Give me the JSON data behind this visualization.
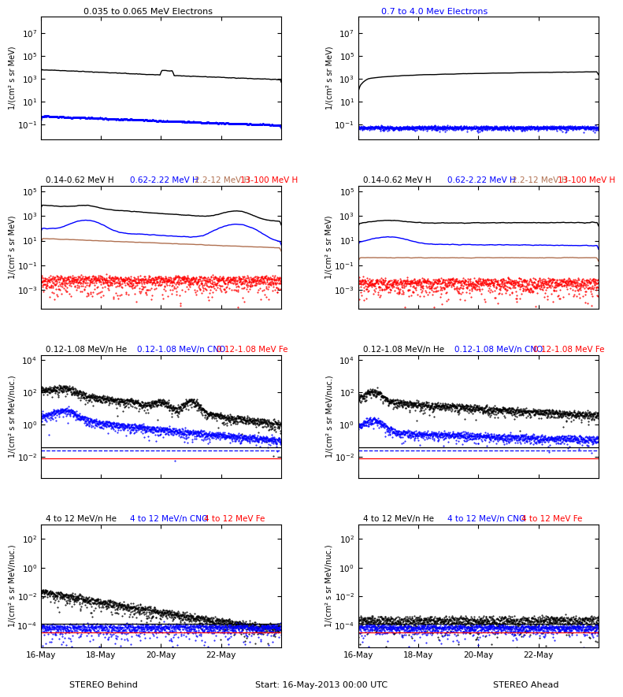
{
  "panels": {
    "row0": {
      "left_title": "0.035 to 0.065 MeV Electrons",
      "right_title": "0.7 to 4.0 Mev Electrons",
      "right_title_color": "blue",
      "ylim": [
        0.005,
        300000000.0
      ],
      "ylabel": "1/(cm² s sr MeV)"
    },
    "row1": {
      "labels": [
        "0.14-0.62 MeV H",
        "0.62-2.22 MeV H",
        "2.2-12 MeV H",
        "13-100 MeV H"
      ],
      "colors": [
        "black",
        "blue",
        "#b07050",
        "red"
      ],
      "ylim": [
        3e-05,
        300000.0
      ],
      "ylabel": "1/(cm² s sr MeV)"
    },
    "row2": {
      "labels": [
        "0.12-1.08 MeV/n He",
        "0.12-1.08 MeV/n CNO",
        "0.12-1.08 MeV Fe"
      ],
      "colors": [
        "black",
        "blue",
        "red"
      ],
      "ylim": [
        0.0005,
        20000.0
      ],
      "ylabel": "1/(cm² s sr MeV/nuc.)"
    },
    "row3": {
      "labels": [
        "4 to 12 MeV/n He",
        "4 to 12 MeV/n CNO",
        "4 to 12 MeV Fe"
      ],
      "colors": [
        "black",
        "blue",
        "red"
      ],
      "ylim": [
        3e-06,
        1000.0
      ],
      "ylabel": "1/(cm² s sr MeV/nuc.)"
    }
  },
  "xtick_labels": [
    "16-May",
    "18-May",
    "20-May",
    "22-May"
  ],
  "xlabel_left": "STEREO Behind",
  "xlabel_center": "Start: 16-May-2013 00:00 UTC",
  "xlabel_right": "STEREO Ahead"
}
